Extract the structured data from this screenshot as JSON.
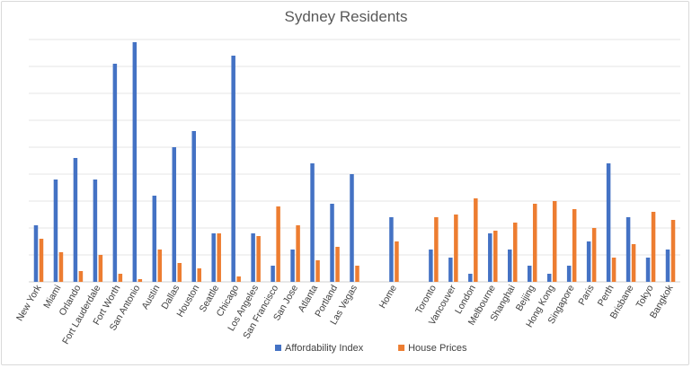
{
  "chart_data": {
    "type": "bar",
    "title": "Sydney Residents",
    "categories": [
      "New York",
      "Miami",
      "Orlando",
      "Fort Lauderdale",
      "Fort Worth",
      "San Antonio",
      "Austin",
      "Dallas",
      "Houston",
      "Seattle",
      "Chicago",
      "Los Angeles",
      "San Francisco",
      "San Jose",
      "Atlanta",
      "Portland",
      "Las Vegas",
      "",
      "Home",
      "",
      "Toronto",
      "Vancouver",
      "London",
      "Melbourne",
      "Shanghai",
      "Beijing",
      "Hong Kong",
      "Singapore",
      "Paris",
      "Perth",
      "Brisbane",
      "Tokyo",
      "Bangkok"
    ],
    "series": [
      {
        "name": "Affordability Index",
        "color": "#4472c4",
        "values": [
          21,
          38,
          46,
          38,
          81,
          89,
          32,
          50,
          56,
          18,
          84,
          18,
          6,
          12,
          44,
          29,
          40,
          null,
          24,
          null,
          12,
          9,
          3,
          18,
          12,
          6,
          3,
          6,
          15,
          44,
          24,
          9,
          12
        ]
      },
      {
        "name": "House Prices",
        "color": "#ed7d31",
        "values": [
          16,
          11,
          4,
          10,
          3,
          1,
          12,
          7,
          5,
          18,
          2,
          17,
          28,
          21,
          8,
          13,
          6,
          null,
          15,
          null,
          24,
          25,
          31,
          19,
          22,
          29,
          30,
          27,
          20,
          9,
          14,
          26,
          23
        ]
      }
    ],
    "ylim": [
      0,
      90
    ],
    "grid": true,
    "legend": "bottom"
  }
}
